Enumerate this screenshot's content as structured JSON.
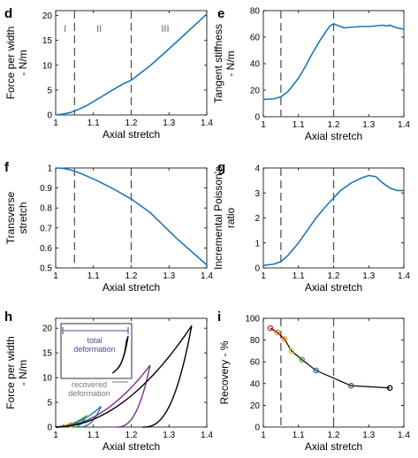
{
  "chart_data": [
    {
      "panel": "d",
      "type": "line",
      "xlabel": "Axial stretch",
      "ylabel": "Force per width - N/m",
      "xlim": [
        1,
        1.4
      ],
      "ylim": [
        0,
        21
      ],
      "xticks": [
        "1",
        "1.1",
        "1.2",
        "1.3",
        "1.4"
      ],
      "yticks": [
        "0",
        "5",
        "10",
        "15",
        "20"
      ],
      "vlines": [
        1.05,
        1.2
      ],
      "region_labels": [
        {
          "label": "I",
          "x": 1.025
        },
        {
          "label": "II",
          "x": 1.115
        },
        {
          "label": "III",
          "x": 1.29
        }
      ],
      "series": [
        {
          "color": "#1f77b4",
          "x": [
            1.0,
            1.02,
            1.04,
            1.05,
            1.06,
            1.08,
            1.1,
            1.12,
            1.15,
            1.18,
            1.2,
            1.25,
            1.3,
            1.35,
            1.4
          ],
          "y": [
            0,
            0.2,
            0.5,
            0.8,
            1.1,
            1.8,
            2.7,
            3.6,
            5.0,
            6.3,
            7.0,
            9.9,
            13.3,
            16.8,
            20.3
          ]
        }
      ]
    },
    {
      "panel": "e",
      "type": "line",
      "xlabel": "Axial stretch",
      "ylabel": "Tangent stiffness - N/m",
      "xlim": [
        1,
        1.4
      ],
      "ylim": [
        0,
        80
      ],
      "xticks": [
        "1",
        "1.1",
        "1.2",
        "1.3",
        "1.4"
      ],
      "yticks": [
        "0",
        "20",
        "40",
        "60",
        "80"
      ],
      "vlines": [
        1.05,
        1.2
      ],
      "series": [
        {
          "color": "#1f77b4",
          "x": [
            1.0,
            1.03,
            1.05,
            1.07,
            1.1,
            1.12,
            1.14,
            1.16,
            1.18,
            1.19,
            1.2,
            1.21,
            1.23,
            1.25,
            1.28,
            1.3,
            1.32,
            1.34,
            1.35,
            1.36,
            1.38,
            1.4
          ],
          "y": [
            13,
            13.5,
            15,
            19,
            29,
            38,
            48,
            57,
            65,
            68.5,
            70,
            69,
            67,
            67.5,
            68,
            68,
            68.5,
            69,
            68.5,
            69,
            67,
            66
          ]
        }
      ]
    },
    {
      "panel": "f",
      "type": "line",
      "xlabel": "Axial stretch",
      "ylabel": "Transverse stretch",
      "xlim": [
        1,
        1.4
      ],
      "ylim": [
        0.5,
        1
      ],
      "xticks": [
        "1",
        "1.1",
        "1.2",
        "1.3",
        "1.4"
      ],
      "yticks": [
        "0.5",
        "0.6",
        "0.7",
        "0.8",
        "0.9",
        "1"
      ],
      "vlines": [
        1.05,
        1.2
      ],
      "series": [
        {
          "color": "#1f77b4",
          "x": [
            1.0,
            1.02,
            1.04,
            1.06,
            1.08,
            1.1,
            1.12,
            1.14,
            1.16,
            1.18,
            1.2,
            1.22,
            1.25,
            1.28,
            1.3,
            1.32,
            1.35,
            1.38,
            1.4
          ],
          "y": [
            1.0,
            0.998,
            0.99,
            0.978,
            0.962,
            0.945,
            0.927,
            0.908,
            0.888,
            0.866,
            0.845,
            0.818,
            0.777,
            0.722,
            0.685,
            0.648,
            0.598,
            0.548,
            0.515
          ]
        }
      ]
    },
    {
      "panel": "g",
      "type": "line",
      "xlabel": "Axial stretch",
      "ylabel": "Incremental Poisson's ratio",
      "xlim": [
        1,
        1.4
      ],
      "ylim": [
        0,
        4
      ],
      "xticks": [
        "1",
        "1.1",
        "1.2",
        "1.3",
        "1.4"
      ],
      "yticks": [
        "0",
        "1",
        "2",
        "3",
        "4"
      ],
      "vlines": [
        1.05,
        1.2
      ],
      "series": [
        {
          "color": "#1f77b4",
          "x": [
            1.0,
            1.03,
            1.05,
            1.07,
            1.1,
            1.12,
            1.15,
            1.18,
            1.2,
            1.22,
            1.25,
            1.28,
            1.3,
            1.32,
            1.34,
            1.36,
            1.38,
            1.4
          ],
          "y": [
            0.1,
            0.15,
            0.25,
            0.5,
            1.0,
            1.4,
            2.0,
            2.5,
            2.8,
            3.1,
            3.4,
            3.6,
            3.7,
            3.65,
            3.4,
            3.2,
            3.1,
            3.1
          ]
        }
      ]
    },
    {
      "panel": "h",
      "type": "line",
      "xlabel": "Axial stretch",
      "ylabel": "Force per width - N/m",
      "xlim": [
        1,
        1.4
      ],
      "ylim": [
        0,
        22
      ],
      "xticks": [
        "1",
        "1.1",
        "1.2",
        "1.3",
        "1.4"
      ],
      "yticks": [
        "0",
        "5",
        "10",
        "15",
        "20"
      ],
      "inset": {
        "label_total": "total deformation",
        "label_recovered": "recovered deformation"
      },
      "loops": [
        {
          "color": "#d62728",
          "xstart": 1.0,
          "xmax": 1.02,
          "xend": 1.015,
          "ymax": 0.35
        },
        {
          "color": "#ff7f0e",
          "xstart": 1.0,
          "xmax": 1.04,
          "xend": 1.025,
          "ymax": 0.8
        },
        {
          "color": "#dbc11a",
          "xstart": 1.0,
          "xmax": 1.06,
          "xend": 1.035,
          "ymax": 1.3
        },
        {
          "color": "#2ca02c",
          "xstart": 1.0,
          "xmax": 1.08,
          "xend": 1.045,
          "ymax": 2.2
        },
        {
          "color": "#1f77b4",
          "xstart": 1.0,
          "xmax": 1.12,
          "xend": 1.06,
          "ymax": 4.2
        },
        {
          "color": "#7e2f8e",
          "xstart": 1.0,
          "xmax": 1.25,
          "xend": 1.16,
          "ymax": 12.5
        },
        {
          "color": "#000000",
          "xstart": 1.0,
          "xmax": 1.36,
          "xend": 1.23,
          "ymax": 20.5
        }
      ]
    },
    {
      "panel": "i",
      "type": "scatter",
      "xlabel": "Axial stretch",
      "ylabel": "Recovery - %",
      "xlim": [
        1,
        1.4
      ],
      "ylim": [
        0,
        100
      ],
      "xticks": [
        "1",
        "1.1",
        "1.2",
        "1.3",
        "1.4"
      ],
      "yticks": [
        "0",
        "20",
        "40",
        "60",
        "80",
        "100"
      ],
      "vlines": [
        1.05,
        1.2
      ],
      "series": [
        {
          "color": "#000000",
          "x": [
            1.02,
            1.04,
            1.06,
            1.08,
            1.11,
            1.15,
            1.25,
            1.36
          ],
          "y": [
            91,
            87,
            81,
            70,
            62,
            52,
            38,
            36
          ],
          "marker_colors": [
            "#d62728",
            "#ff7f0e",
            "#ff7f0e",
            "#dbc11a",
            "#2ca02c",
            "#1f77b4",
            "#7e2f8e",
            "#000000"
          ]
        }
      ]
    }
  ]
}
